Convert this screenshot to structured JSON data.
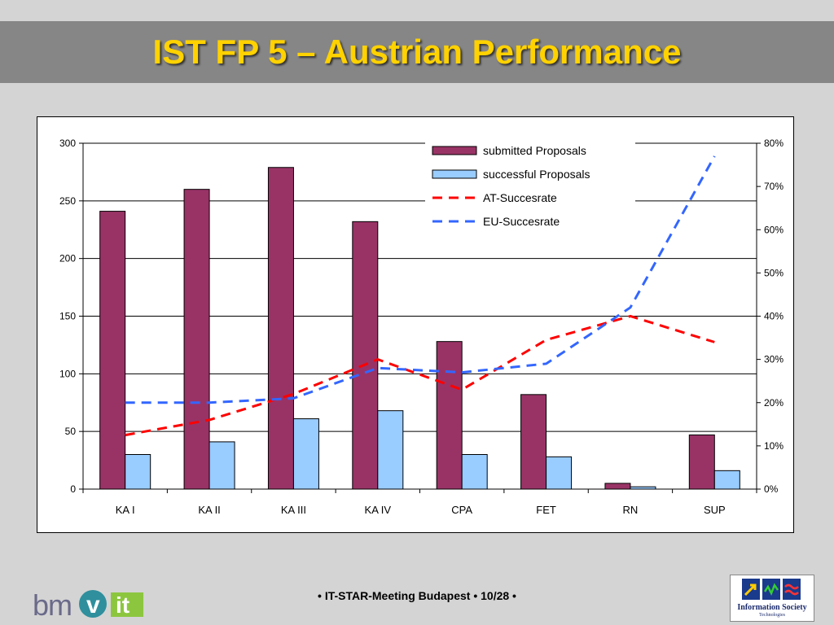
{
  "slide": {
    "title": "IST FP 5 – Austrian Performance",
    "footer": "• IT-STAR-Meeting Budapest • 10/28 •",
    "logo_left_text": "bmvit",
    "logo_right_line1": "Information Society",
    "logo_right_line2": "Technologies"
  },
  "colors": {
    "submitted": "#993366",
    "successful": "#99ccff",
    "at_rate": "#ff0000",
    "eu_rate": "#3366ff"
  },
  "chart_data": {
    "type": "bar",
    "categories": [
      "KA I",
      "KA II",
      "KA III",
      "KA IV",
      "CPA",
      "FET",
      "RN",
      "SUP"
    ],
    "series": [
      {
        "name": "submitted Proposals",
        "kind": "bar",
        "axis": "left",
        "values": [
          241,
          260,
          279,
          232,
          128,
          82,
          5,
          47
        ]
      },
      {
        "name": "successful Proposals",
        "kind": "bar",
        "axis": "left",
        "values": [
          30,
          41,
          61,
          68,
          30,
          28,
          2,
          16
        ]
      },
      {
        "name": "AT-Succesrate",
        "kind": "line",
        "axis": "right",
        "values": [
          0.125,
          0.16,
          0.22,
          0.3,
          0.23,
          0.345,
          0.4,
          0.34
        ]
      },
      {
        "name": "EU-Succesrate",
        "kind": "line",
        "axis": "right",
        "values": [
          0.2,
          0.2,
          0.21,
          0.28,
          0.27,
          0.29,
          0.42,
          0.77
        ]
      }
    ],
    "ylim": [
      0,
      300
    ],
    "yticks": [
      "0",
      "50",
      "100",
      "150",
      "200",
      "250",
      "300"
    ],
    "y2lim": [
      0,
      0.8
    ],
    "y2ticks": [
      "0%",
      "10%",
      "20%",
      "30%",
      "40%",
      "50%",
      "60%",
      "70%",
      "80%"
    ],
    "grid": true,
    "legend_position": "top-right"
  }
}
